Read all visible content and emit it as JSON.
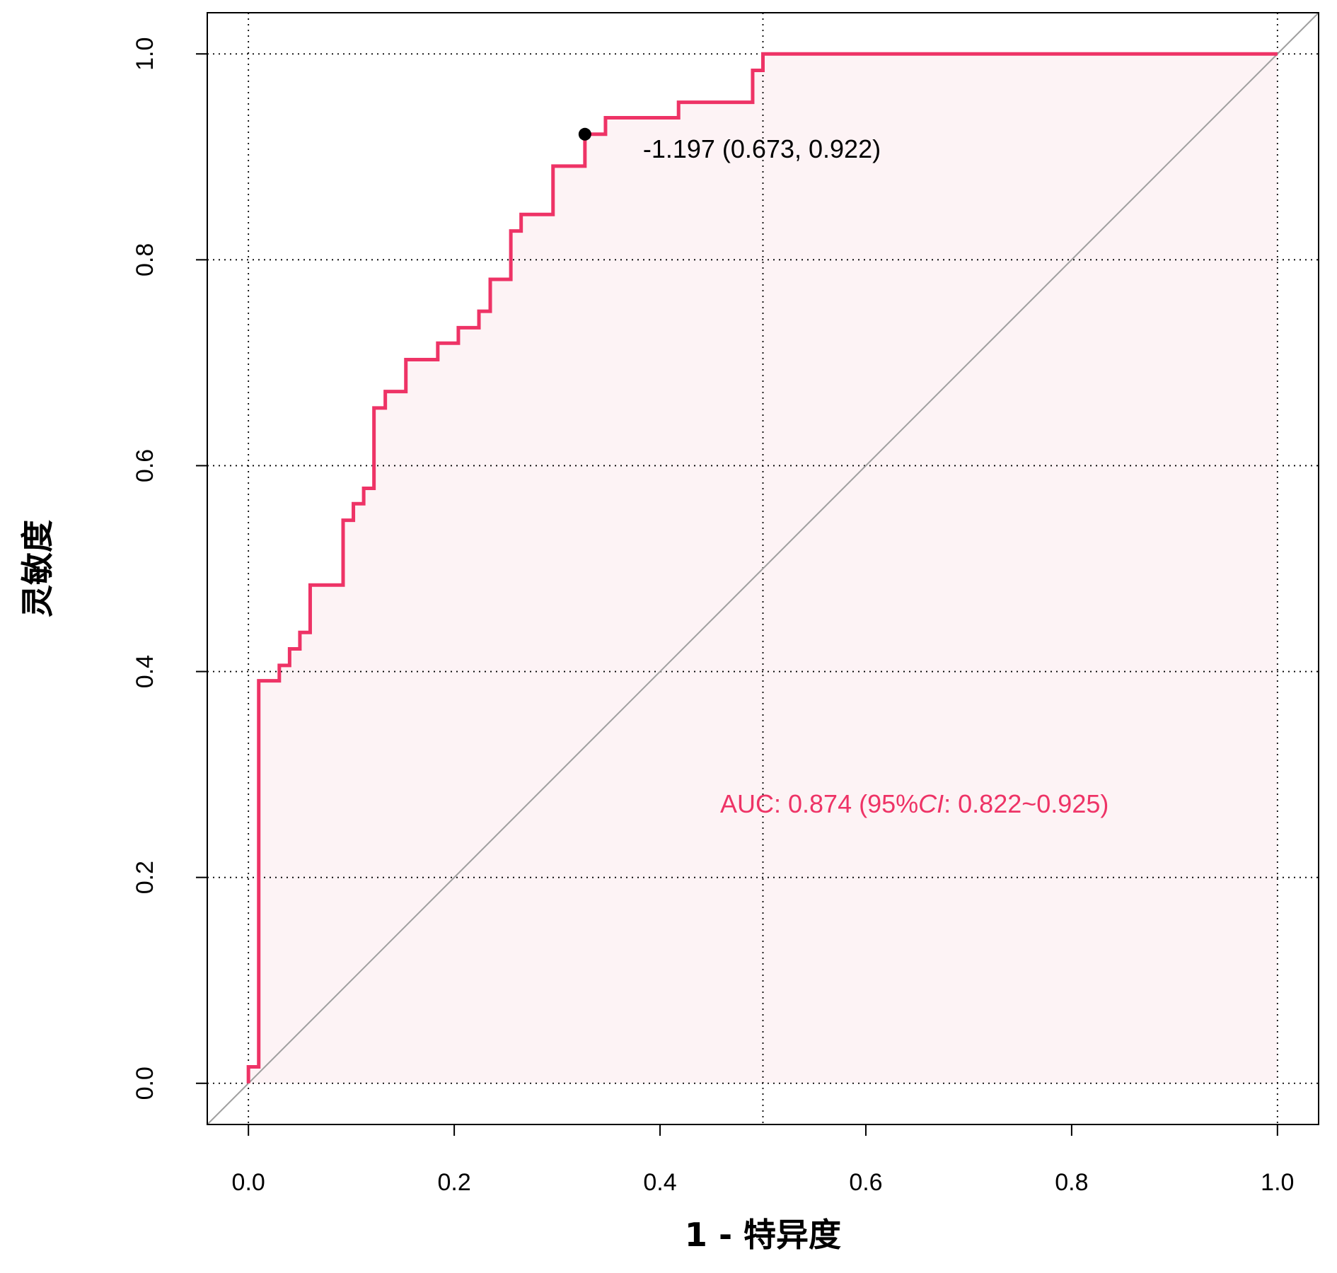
{
  "chart_data": {
    "type": "line",
    "title": "",
    "xlabel": "1 - 特异度",
    "ylabel": "灵敏度",
    "xlim": [
      -0.04,
      1.04
    ],
    "ylim": [
      -0.04,
      1.04
    ],
    "x_ticks": [
      "0.0",
      "0.2",
      "0.4",
      "0.6",
      "0.8",
      "1.0"
    ],
    "y_ticks": [
      "0.0",
      "0.2",
      "0.4",
      "0.6",
      "0.8",
      "1.0"
    ],
    "grid": true,
    "series": [
      {
        "color": "#EE3366",
        "fill": "#FDF3F5",
        "x": [
          0.0,
          0.0,
          0.01,
          0.01,
          0.03,
          0.03,
          0.04,
          0.04,
          0.05,
          0.05,
          0.06,
          0.06,
          0.092,
          0.092,
          0.102,
          0.102,
          0.112,
          0.112,
          0.122,
          0.122,
          0.133,
          0.133,
          0.153,
          0.153,
          0.184,
          0.184,
          0.204,
          0.204,
          0.224,
          0.224,
          0.235,
          0.235,
          0.255,
          0.255,
          0.265,
          0.265,
          0.296,
          0.296,
          0.327,
          0.327,
          0.347,
          0.347,
          0.418,
          0.418,
          0.49,
          0.49,
          0.5,
          0.5,
          1.0
        ],
        "y": [
          0.0,
          0.016,
          0.016,
          0.391,
          0.391,
          0.406,
          0.406,
          0.422,
          0.422,
          0.438,
          0.438,
          0.484,
          0.484,
          0.547,
          0.547,
          0.563,
          0.563,
          0.578,
          0.578,
          0.656,
          0.656,
          0.672,
          0.672,
          0.703,
          0.703,
          0.719,
          0.719,
          0.734,
          0.734,
          0.75,
          0.75,
          0.781,
          0.781,
          0.828,
          0.828,
          0.844,
          0.844,
          0.891,
          0.891,
          0.922,
          0.922,
          0.938,
          0.938,
          0.953,
          0.953,
          0.984,
          0.984,
          1.0,
          1.0
        ]
      },
      {
        "color": "#A0A0A0",
        "x": [
          -0.04,
          1.04
        ],
        "y": [
          -0.04,
          1.04
        ]
      }
    ],
    "optimal_point": {
      "x": 0.327,
      "y": 0.922,
      "label": "-1.197 (0.673, 0.922)"
    },
    "auc_label": {
      "prefix": "AUC: 0.874 (95%",
      "ci": "CI",
      "suffix": ": 0.822~0.925)",
      "color": "#EE3366"
    }
  }
}
